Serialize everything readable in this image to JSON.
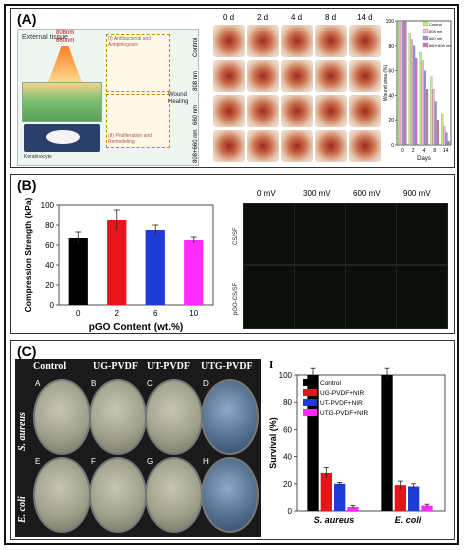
{
  "panels": {
    "a": {
      "tag": "(A)"
    },
    "b": {
      "tag": "(B)"
    },
    "c": {
      "tag": "(C)"
    }
  },
  "panel_a": {
    "day_labels": [
      "0 d",
      "2 d",
      "4 d",
      "8 d",
      "14 d"
    ],
    "row_labels": [
      "Control",
      "808 nm",
      "660 nm",
      "808+660 nm"
    ],
    "schematic": {
      "external_tissue": "External tissue",
      "wavelength_808": "808nm",
      "wavelength_660": "660nm",
      "stage_1": "(I) Antibacterial and Antiphlogosis",
      "stage_2": "(II) Proliferation and Remodeling",
      "wound_healing": "Wound Healing",
      "keratinocyte": "Keratinocyte"
    }
  },
  "panel_b_images": {
    "col_labels": [
      "0 mV",
      "300 mV",
      "600 mV",
      "900 mV"
    ],
    "row_labels": [
      "CS/SF",
      "pGO-CS/SF"
    ]
  },
  "panel_c_images": {
    "col_labels": [
      "Control",
      "UG-PVDF",
      "UT-PVDF",
      "UTG-PVDF"
    ],
    "row_labels": [
      "S. aureus",
      "E. coli"
    ],
    "letters": [
      "A",
      "B",
      "C",
      "D",
      "E",
      "F",
      "G",
      "H"
    ],
    "corner_label": "I"
  },
  "colors": {
    "black": "#000000",
    "red": "#e8141b",
    "blue": "#1f3bd6",
    "magenta": "#ff2bff",
    "a_control": "#bff07a",
    "a_808": "#f7b7d8",
    "a_660": "#9b93d6",
    "a_combo": "#c77ea3"
  },
  "chart_data": [
    {
      "id": "wound-area",
      "type": "bar",
      "title": "",
      "xlabel": "Days",
      "ylabel": "Wound area (%)",
      "categories": [
        "0",
        "2",
        "4",
        "8",
        "14"
      ],
      "ylim": [
        0,
        100
      ],
      "yticks": [
        0,
        20,
        40,
        60,
        80,
        100
      ],
      "legend": "top-right",
      "series": [
        {
          "name": "Control",
          "color": "#bff07a",
          "values": [
            100,
            90,
            75,
            55,
            25
          ]
        },
        {
          "name": "808 nm",
          "color": "#f7b7d8",
          "values": [
            100,
            85,
            68,
            45,
            15
          ]
        },
        {
          "name": "660 nm",
          "color": "#9b93d6",
          "values": [
            100,
            80,
            60,
            35,
            10
          ]
        },
        {
          "name": "660+808 nm",
          "color": "#c77ea3",
          "values": [
            100,
            70,
            45,
            20,
            3
          ]
        }
      ]
    },
    {
      "id": "compression-strength",
      "type": "bar",
      "title": "",
      "xlabel": "pGO Content (wt.%)",
      "ylabel": "Compression Strength (kPa)",
      "categories": [
        "0",
        "2",
        "6",
        "10"
      ],
      "values": [
        67,
        85,
        75,
        65
      ],
      "errors": [
        6,
        10,
        5,
        3
      ],
      "colors": [
        "#000000",
        "#e8141b",
        "#1f3bd6",
        "#ff2bff"
      ],
      "ylim": [
        0,
        100
      ],
      "yticks": [
        0,
        20,
        40,
        60,
        80,
        100
      ]
    },
    {
      "id": "survival",
      "type": "bar",
      "title": "",
      "xlabel": "",
      "ylabel": "Survival (%)",
      "categories": [
        "S. aureus",
        "E. coli"
      ],
      "ylim": [
        0,
        100
      ],
      "yticks": [
        0,
        20,
        40,
        60,
        80,
        100
      ],
      "legend": "top-left",
      "series": [
        {
          "name": "Control",
          "color": "#000000",
          "values": [
            100,
            100
          ],
          "errors": [
            5,
            5
          ]
        },
        {
          "name": "UG-PVDF+NIR",
          "color": "#e8141b",
          "values": [
            28,
            19
          ],
          "errors": [
            4,
            3
          ]
        },
        {
          "name": "UT-PVDF+NIR",
          "color": "#1f3bd6",
          "values": [
            20,
            18
          ],
          "errors": [
            1,
            2
          ]
        },
        {
          "name": "UTG-PVDF+NIR",
          "color": "#ff2bff",
          "values": [
            3,
            4
          ],
          "errors": [
            1,
            1
          ]
        }
      ]
    }
  ]
}
